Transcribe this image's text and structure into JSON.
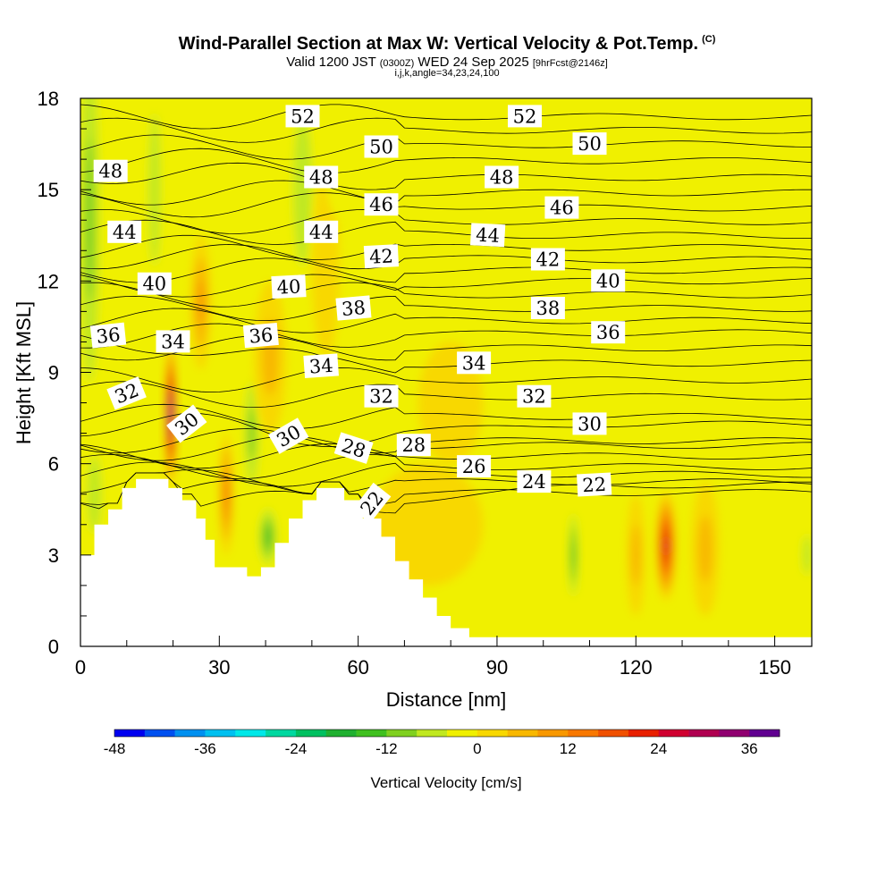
{
  "header": {
    "title": "Wind-Parallel Section at Max W: Vertical Velocity & Pot.Temp.",
    "copyright": "(C)",
    "valid_prefix": "Valid 1200 JST",
    "valid_utc": "(0300Z)",
    "valid_date": "WED 24 Sep 2025",
    "forecast": "[9hrFcst@2146z]",
    "indices": "i,j,k,angle=34,23,24,100"
  },
  "chart_data": {
    "type": "heatmap",
    "xlabel": "Distance [nm]",
    "ylabel": "Height [Kft MSL]",
    "xlim": [
      0,
      158
    ],
    "ylim": [
      0,
      18
    ],
    "x_ticks": [
      "0",
      "30",
      "60",
      "90",
      "120",
      "150"
    ],
    "y_ticks": [
      "0",
      "3",
      "6",
      "9",
      "12",
      "15",
      "18"
    ],
    "colorbar": {
      "label": "Vertical Velocity [cm/s]",
      "range": [
        -48,
        40
      ],
      "step": 4,
      "tick_labels": [
        "-48",
        "-36",
        "-24",
        "-12",
        "0",
        "12",
        "24",
        "36"
      ],
      "colors": [
        "#0000f0",
        "#0050f0",
        "#0090f0",
        "#00c0f0",
        "#00e8e8",
        "#00d8a0",
        "#00c060",
        "#20b030",
        "#40c020",
        "#80d020",
        "#c0e820",
        "#f0f000",
        "#f8d800",
        "#f8b800",
        "#f89800",
        "#f87800",
        "#f05000",
        "#e82000",
        "#d00030",
        "#b00050",
        "#900070",
        "#600090"
      ]
    },
    "terrain": [
      [
        0,
        3
      ],
      [
        3,
        3
      ],
      [
        3,
        4
      ],
      [
        6,
        4
      ],
      [
        6,
        4.5
      ],
      [
        9,
        4.5
      ],
      [
        9,
        5.2
      ],
      [
        12,
        5.2
      ],
      [
        12,
        5.5
      ],
      [
        19,
        5.5
      ],
      [
        19,
        5.2
      ],
      [
        22,
        5.2
      ],
      [
        22,
        4.8
      ],
      [
        25,
        4.8
      ],
      [
        25,
        4.2
      ],
      [
        27,
        4.2
      ],
      [
        27,
        3.5
      ],
      [
        29,
        3.5
      ],
      [
        29,
        2.6
      ],
      [
        36,
        2.6
      ],
      [
        36,
        2.3
      ],
      [
        39,
        2.3
      ],
      [
        39,
        2.6
      ],
      [
        42,
        2.6
      ],
      [
        42,
        3.4
      ],
      [
        45,
        3.4
      ],
      [
        45,
        4.2
      ],
      [
        48,
        4.2
      ],
      [
        48,
        4.8
      ],
      [
        51,
        4.8
      ],
      [
        51,
        5.2
      ],
      [
        57,
        5.2
      ],
      [
        57,
        4.8
      ],
      [
        61,
        4.8
      ],
      [
        61,
        4.2
      ],
      [
        65,
        4.2
      ],
      [
        65,
        3.6
      ],
      [
        68,
        3.6
      ],
      [
        68,
        2.8
      ],
      [
        71,
        2.8
      ],
      [
        71,
        2.2
      ],
      [
        74,
        2.2
      ],
      [
        74,
        1.6
      ],
      [
        77,
        1.6
      ],
      [
        77,
        1.0
      ],
      [
        80,
        1.0
      ],
      [
        80,
        0.6
      ],
      [
        84,
        0.6
      ],
      [
        84,
        0.3
      ],
      [
        158,
        0.3
      ]
    ],
    "w_cells": [
      {
        "x": 2,
        "y": 14,
        "dx": 3,
        "dy": 8,
        "w": -12
      },
      {
        "x": 3,
        "y": 5,
        "dx": 3,
        "dy": 2.5,
        "w": -8
      },
      {
        "x": 16,
        "y": 15,
        "dx": 2.5,
        "dy": 5,
        "w": -6
      },
      {
        "x": 19.5,
        "y": 7.6,
        "dx": 1.3,
        "dy": 2.4,
        "w": 40
      },
      {
        "x": 26,
        "y": 11.3,
        "dx": 2.2,
        "dy": 2.2,
        "w": 12
      },
      {
        "x": 31.5,
        "y": 5,
        "dx": 1.6,
        "dy": 2,
        "w": 14
      },
      {
        "x": 37,
        "y": 7,
        "dx": 2.2,
        "dy": 2.5,
        "w": -12
      },
      {
        "x": 40.5,
        "y": 3.6,
        "dx": 2.5,
        "dy": 1.2,
        "w": -14
      },
      {
        "x": 41,
        "y": 9.5,
        "dx": 3.5,
        "dy": 2.5,
        "w": 8
      },
      {
        "x": 48,
        "y": 15,
        "dx": 4,
        "dy": 5,
        "w": -6
      },
      {
        "x": 53,
        "y": 12.5,
        "dx": 3,
        "dy": 3,
        "w": 4
      },
      {
        "x": 57,
        "y": 16.5,
        "dx": 5,
        "dy": 2.5,
        "w": -4
      },
      {
        "x": 80,
        "y": 8,
        "dx": 7,
        "dy": 2,
        "w": 3
      },
      {
        "x": 106.5,
        "y": 3,
        "dx": 1.3,
        "dy": 1.8,
        "w": -16
      },
      {
        "x": 126.5,
        "y": 3.3,
        "dx": 2.2,
        "dy": 1.8,
        "w": 26
      },
      {
        "x": 120,
        "y": 3,
        "dx": 2,
        "dy": 2,
        "w": 6
      },
      {
        "x": 135,
        "y": 3.2,
        "dx": 3,
        "dy": 2.2,
        "w": 8
      },
      {
        "x": 157,
        "y": 3,
        "dx": 2,
        "dy": 1.3,
        "w": -8
      },
      {
        "x": 75,
        "y": 4,
        "dx": 12,
        "dy": 2,
        "w": 4
      }
    ],
    "contour_labels": [
      {
        "x": 48,
        "y": 17.4,
        "text": "52",
        "angle": 0
      },
      {
        "x": 96,
        "y": 17.4,
        "text": "52",
        "angle": 0
      },
      {
        "x": 6.5,
        "y": 15.6,
        "text": "48",
        "angle": 0
      },
      {
        "x": 65,
        "y": 16.4,
        "text": "50",
        "angle": 0
      },
      {
        "x": 110,
        "y": 16.5,
        "text": "50",
        "angle": 0
      },
      {
        "x": 52,
        "y": 15.4,
        "text": "48",
        "angle": 0
      },
      {
        "x": 91,
        "y": 15.4,
        "text": "48",
        "angle": 0
      },
      {
        "x": 9.5,
        "y": 13.6,
        "text": "44",
        "angle": 0
      },
      {
        "x": 65,
        "y": 14.5,
        "text": "46",
        "angle": 0
      },
      {
        "x": 104,
        "y": 14.4,
        "text": "46",
        "angle": 0
      },
      {
        "x": 52,
        "y": 13.6,
        "text": "44",
        "angle": 0
      },
      {
        "x": 88,
        "y": 13.5,
        "text": "44",
        "angle": 3
      },
      {
        "x": 65,
        "y": 12.8,
        "text": "42",
        "angle": -3
      },
      {
        "x": 101,
        "y": 12.7,
        "text": "42",
        "angle": 0
      },
      {
        "x": 16,
        "y": 11.9,
        "text": "40",
        "angle": 0
      },
      {
        "x": 45,
        "y": 11.8,
        "text": "40",
        "angle": -3
      },
      {
        "x": 114,
        "y": 12,
        "text": "40",
        "angle": 0
      },
      {
        "x": 59,
        "y": 11.1,
        "text": "38",
        "angle": -5
      },
      {
        "x": 101,
        "y": 11.1,
        "text": "38",
        "angle": 0
      },
      {
        "x": 6,
        "y": 10.2,
        "text": "36",
        "angle": -6
      },
      {
        "x": 20,
        "y": 10,
        "text": "34",
        "angle": 0
      },
      {
        "x": 39,
        "y": 10.2,
        "text": "36",
        "angle": -5
      },
      {
        "x": 114,
        "y": 10.3,
        "text": "36",
        "angle": 0
      },
      {
        "x": 52,
        "y": 9.2,
        "text": "34",
        "angle": -4
      },
      {
        "x": 85,
        "y": 9.3,
        "text": "34",
        "angle": 0
      },
      {
        "x": 10,
        "y": 8.3,
        "text": "32",
        "angle": -22
      },
      {
        "x": 65,
        "y": 8.2,
        "text": "32",
        "angle": 0
      },
      {
        "x": 98,
        "y": 8.2,
        "text": "32",
        "angle": 0
      },
      {
        "x": 23,
        "y": 7.3,
        "text": "30",
        "angle": -38
      },
      {
        "x": 110,
        "y": 7.3,
        "text": "30",
        "angle": 0
      },
      {
        "x": 45,
        "y": 6.9,
        "text": "30",
        "angle": -30
      },
      {
        "x": 59,
        "y": 6.5,
        "text": "28",
        "angle": 18
      },
      {
        "x": 72,
        "y": 6.6,
        "text": "28",
        "angle": 0
      },
      {
        "x": 85,
        "y": 5.9,
        "text": "26",
        "angle": 0
      },
      {
        "x": 98,
        "y": 5.4,
        "text": "24",
        "angle": 0
      },
      {
        "x": 111,
        "y": 5.3,
        "text": "22",
        "angle": -3
      },
      {
        "x": 63,
        "y": 4.7,
        "text": "22",
        "angle": -52
      }
    ]
  }
}
